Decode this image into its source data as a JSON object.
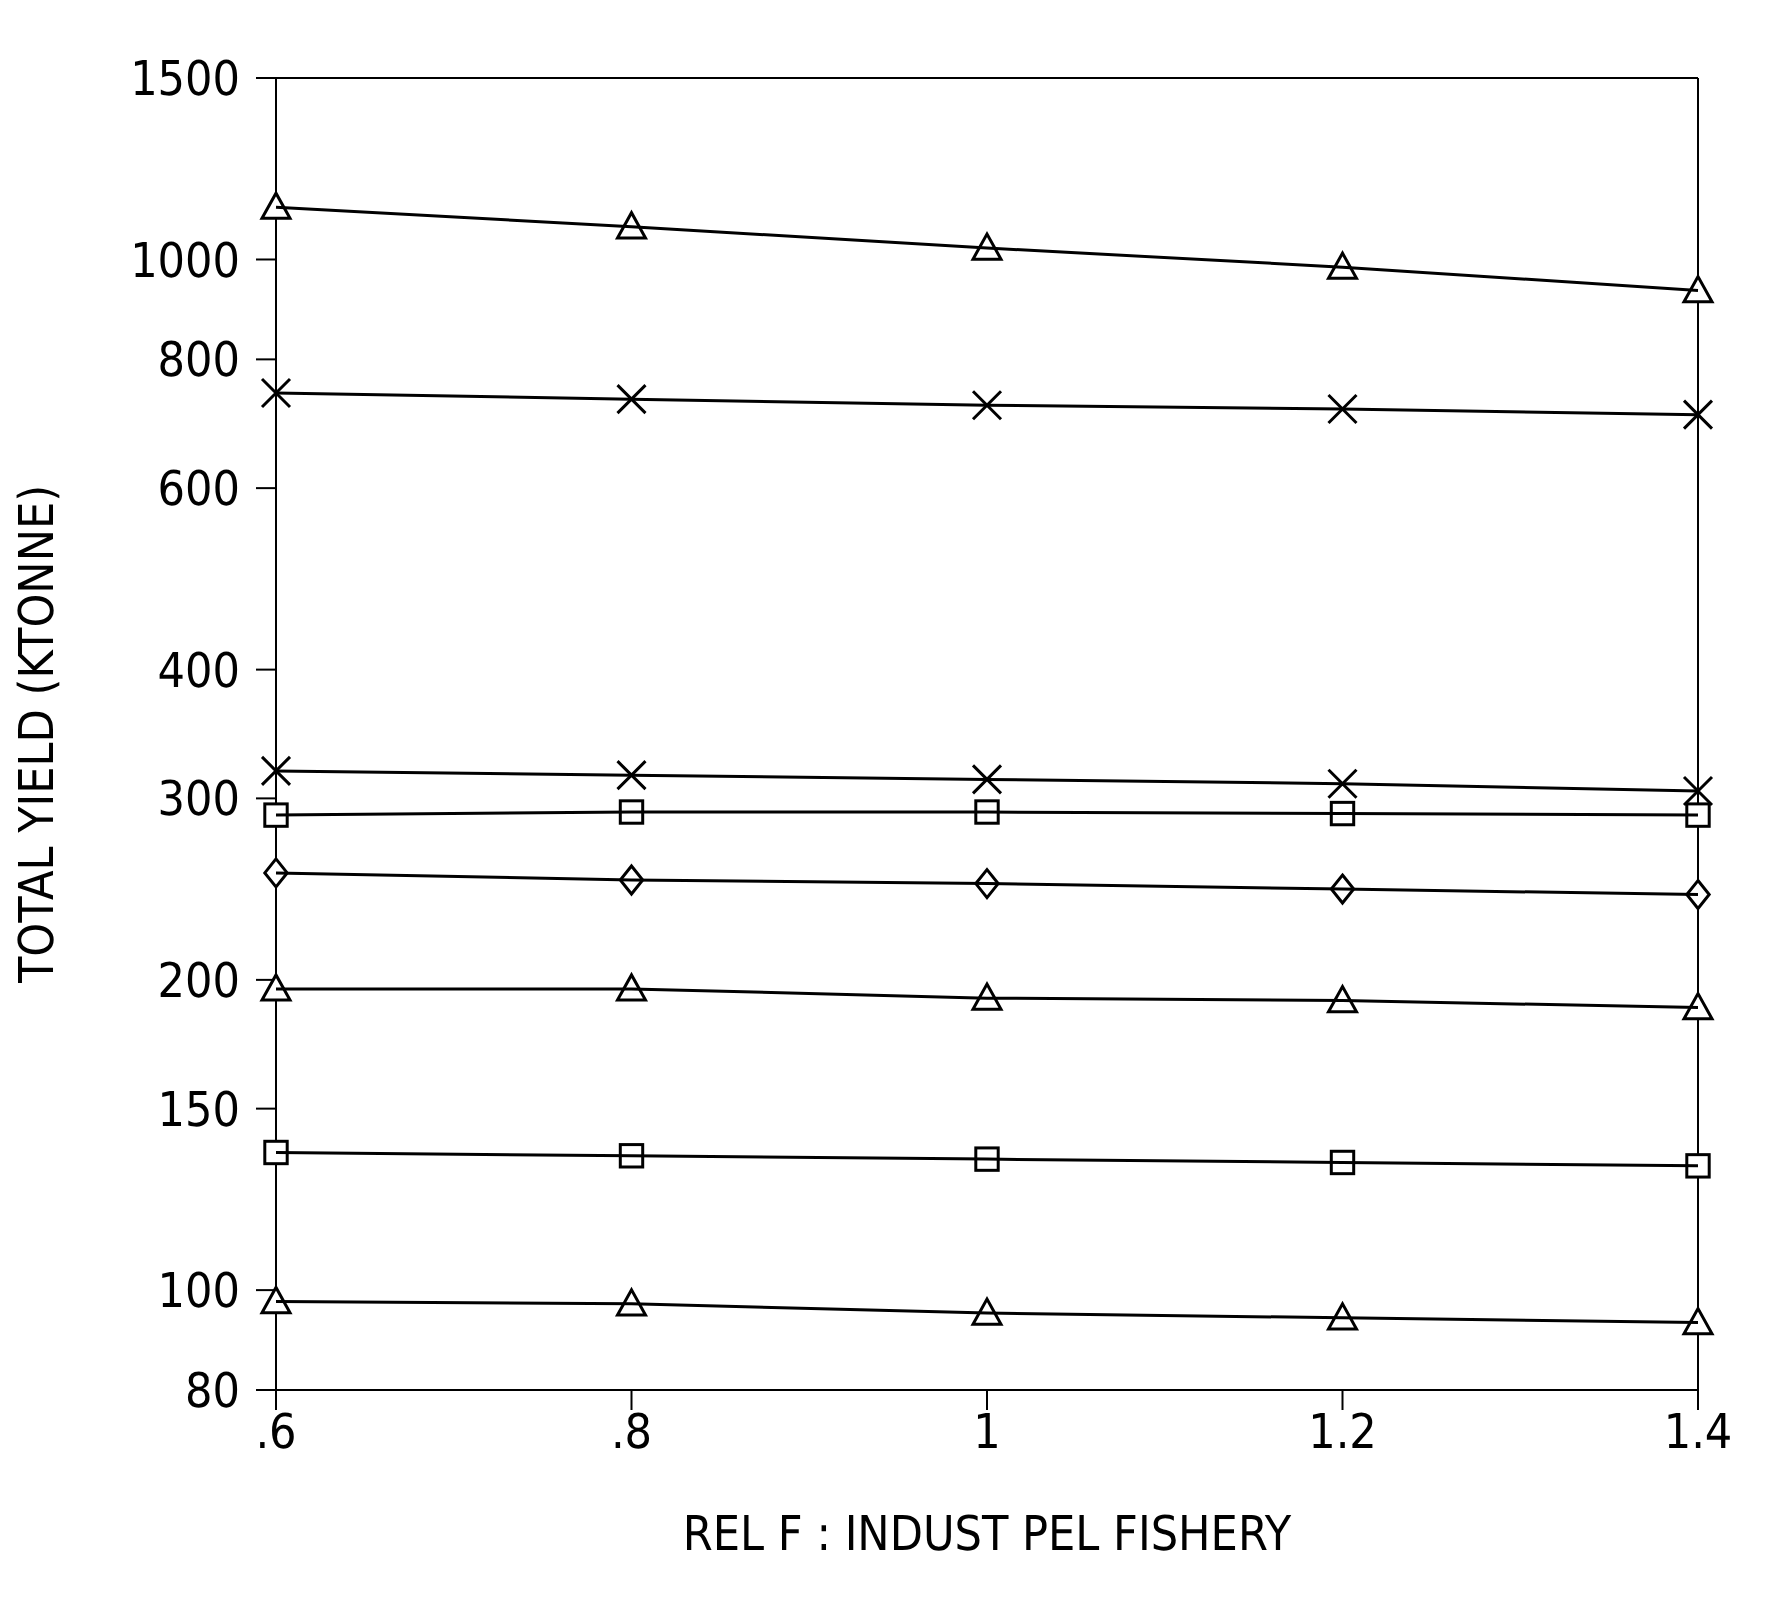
{
  "chart_data": {
    "type": "line",
    "xlabel": "REL F :  INDUST PEL FISHERY",
    "ylabel": "TOTAL YIELD (KTONNE)",
    "x": [
      0.6,
      0.8,
      1,
      1.2,
      1.4
    ],
    "series": [
      {
        "color": "#000000",
        "marker": "triangle",
        "values": [
          1124,
          1076,
          1026,
          983,
          933
        ]
      },
      {
        "color": "#000000",
        "marker": "cross",
        "values": [
          742,
          732,
          722,
          716,
          707
        ]
      },
      {
        "color": "#000000",
        "marker": "cross",
        "values": [
          319,
          316,
          313,
          310,
          305
        ]
      },
      {
        "color": "#000000",
        "marker": "square",
        "values": [
          289,
          291,
          291,
          290,
          289
        ]
      },
      {
        "color": "#000000",
        "marker": "diamond",
        "values": [
          254,
          250,
          248,
          245,
          242
        ]
      },
      {
        "color": "#000000",
        "marker": "triangle",
        "values": [
          196,
          196,
          192,
          191,
          188
        ]
      },
      {
        "color": "#000000",
        "marker": "square",
        "values": [
          136,
          135,
          134,
          133,
          132
        ]
      },
      {
        "color": "#000000",
        "marker": "triangle",
        "values": [
          97.5,
          97,
          95,
          94,
          93
        ]
      }
    ],
    "log": "y",
    "xlim": [
      0.6,
      1.4
    ],
    "xticks": [
      {
        "value": 0.6,
        "label": ".6"
      },
      {
        "value": 0.8,
        "label": ".8"
      },
      1,
      1.2,
      1.4
    ],
    "ylim": [
      80,
      1500
    ],
    "yticks": [
      80,
      100,
      150,
      200,
      300,
      400,
      600,
      800,
      1000,
      1500
    ],
    "grid": false,
    "legend": false,
    "line_style": "solid"
  }
}
